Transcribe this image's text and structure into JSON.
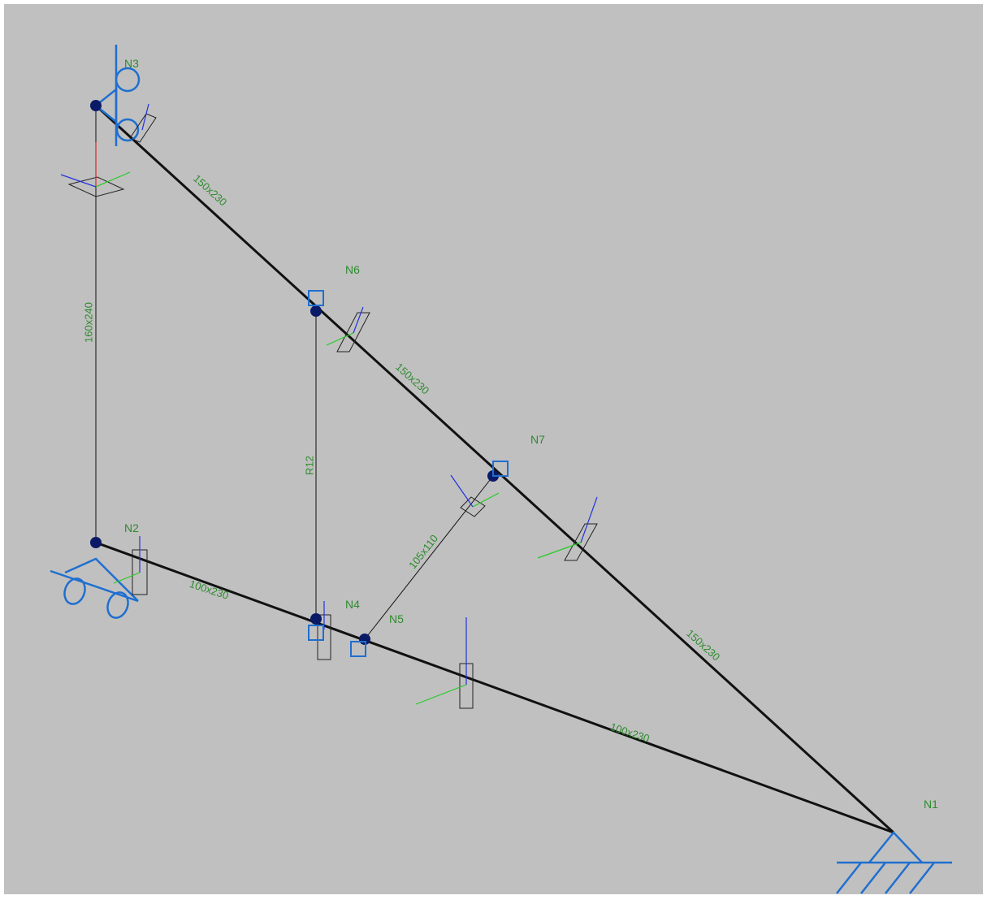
{
  "nodes": [
    "N1",
    "N2",
    "N3",
    "N4",
    "N5",
    "N6",
    "N7"
  ],
  "members": [
    "150x230",
    "150x230",
    "150x230",
    "160x240",
    "R12",
    "100x230",
    "100x230",
    "105x110"
  ]
}
